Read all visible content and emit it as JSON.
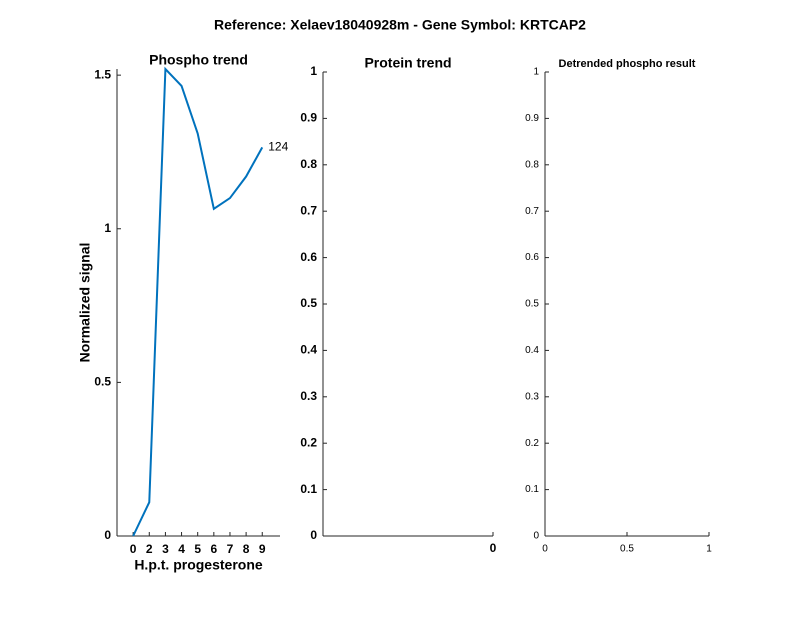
{
  "title": "Reference:  Xelaev18040928m - Gene Symbol:  KRTCAP2",
  "chart_data": [
    {
      "type": "line",
      "title": "Phospho trend",
      "xlabel": "H.p.t. progesterone",
      "ylabel": "Normalized signal",
      "categories": [
        "0",
        "2",
        "3",
        "4",
        "5",
        "6",
        "7",
        "8",
        "9"
      ],
      "series": [
        {
          "color": "#0072bd",
          "values": [
            0,
            0.11,
            1.52,
            1.465,
            1.31,
            1.065,
            1.1,
            1.17,
            1.265
          ]
        }
      ],
      "annotation": "124",
      "ylim": [
        0,
        1.52
      ],
      "yticks": [
        0,
        0.5,
        1,
        1.5
      ]
    },
    {
      "type": "line",
      "title": "Protein trend",
      "xlim": [
        -1,
        0
      ],
      "xticks": [
        0
      ],
      "ylim": [
        0,
        1
      ],
      "yticks": [
        0,
        0.1,
        0.2,
        0.3,
        0.4,
        0.5,
        0.6,
        0.7,
        0.8,
        0.9,
        1
      ]
    },
    {
      "type": "line",
      "title": "Detrended phospho result",
      "xlim": [
        0,
        1
      ],
      "xticks": [
        0,
        0.5,
        1
      ],
      "ylim": [
        0,
        1
      ],
      "yticks": [
        0,
        0.1,
        0.2,
        0.3,
        0.4,
        0.5,
        0.6,
        0.7,
        0.8,
        0.9,
        1
      ]
    }
  ]
}
